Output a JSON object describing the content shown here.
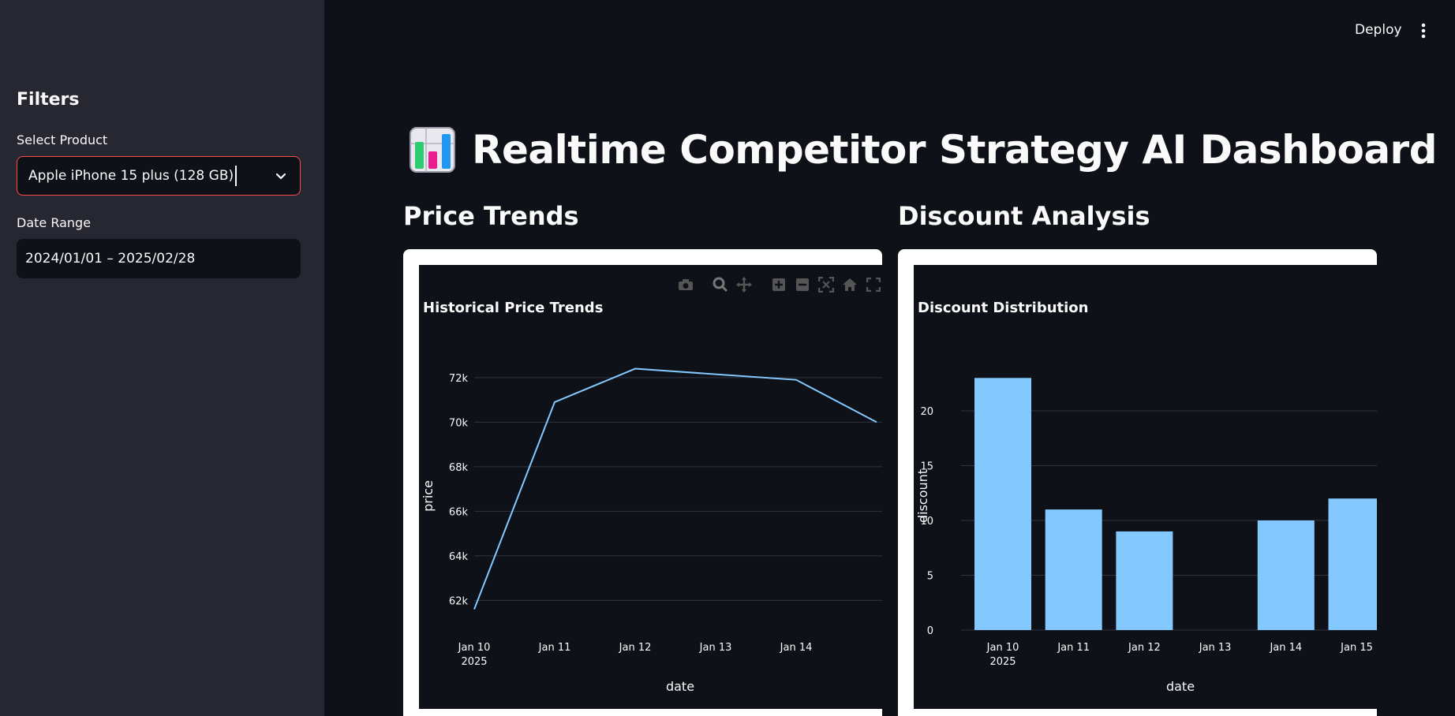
{
  "sidebar": {
    "heading": "Filters",
    "product_label": "Select Product",
    "product_value": "Apple iPhone 15 plus (128 GB)",
    "date_label": "Date Range",
    "date_value": "2024/01/01 – 2025/02/28"
  },
  "header": {
    "deploy_label": "Deploy"
  },
  "main": {
    "title": "Realtime Competitor Strategy AI Dashboard",
    "price_section": "Price Trends",
    "discount_section": "Discount Analysis"
  },
  "chart_data": [
    {
      "type": "line",
      "title": "Historical Price Trends",
      "xlabel": "date",
      "ylabel": "price",
      "x": [
        "2025-01-10",
        "2025-01-11",
        "2025-01-12",
        "2025-01-14",
        "2025-01-15"
      ],
      "values": [
        61600,
        70900,
        72400,
        71900,
        70000
      ],
      "x_ticks": [
        "Jan 10",
        "Jan 11",
        "Jan 12",
        "Jan 13",
        "Jan 14"
      ],
      "x_tick_year": "2025",
      "y_ticks": [
        "62k",
        "64k",
        "66k",
        "68k",
        "70k",
        "72k"
      ],
      "color": "#83c9ff"
    },
    {
      "type": "bar",
      "title": "Discount Distribution",
      "xlabel": "date",
      "ylabel": "discount",
      "categories": [
        "Jan 10",
        "Jan 11",
        "Jan 12",
        "Jan 13",
        "Jan 14",
        "Jan 15"
      ],
      "x_tick_year": "2025",
      "values": [
        23,
        11,
        9,
        0,
        10,
        12
      ],
      "y_ticks": [
        "0",
        "5",
        "10",
        "15",
        "20"
      ],
      "ylim": [
        0,
        25
      ],
      "color": "#83c9ff"
    }
  ]
}
